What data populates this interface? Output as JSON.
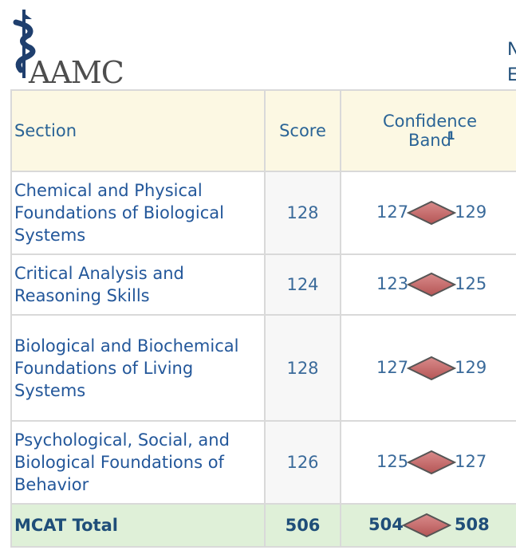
{
  "brand": {
    "logo_text": "AAMC"
  },
  "edge_letters": [
    "N",
    "E"
  ],
  "table": {
    "headers": {
      "section": "Section",
      "score": "Score",
      "band": "Confidence Band",
      "band_note": "1"
    },
    "rows": [
      {
        "section": "Chemical and Physical Foundations of Biological Systems",
        "score": "128",
        "low": "127",
        "high": "129"
      },
      {
        "section": "Critical Analysis and Reasoning Skills",
        "score": "124",
        "low": "123",
        "high": "125"
      },
      {
        "section": "Biological and Biochemical Foundations of Living Systems",
        "score": "128",
        "low": "127",
        "high": "129"
      },
      {
        "section": "Psychological, Social, and Biological Foundations of Behavior",
        "score": "126",
        "low": "125",
        "high": "127"
      }
    ],
    "total": {
      "section": "MCAT Total",
      "score": "506",
      "low": "504",
      "high": "508"
    }
  },
  "colors": {
    "header_bg": "#fcf8e3",
    "total_bg": "#dff0d8",
    "diamond": "#c26b6b"
  }
}
